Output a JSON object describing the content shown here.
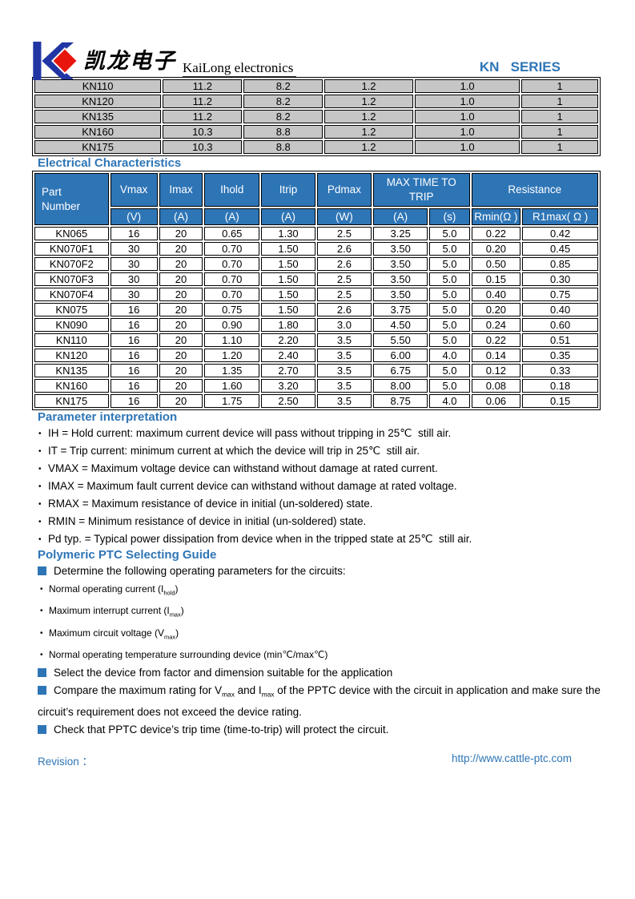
{
  "colors": {
    "accent": "#2E75B6",
    "logo_blue": "#2136A4",
    "logo_red": "#E8150D",
    "table_gray": "#C6C6C6",
    "table_header_blue": "#2E75B6"
  },
  "header": {
    "logo_cn": "凯龙电子",
    "logo_en": "KaiLong electronics",
    "series": "KN   SERIES"
  },
  "dimensions_table": {
    "rows": [
      [
        "KN110",
        "11.2",
        "8.2",
        "1.2",
        "1.0",
        "1"
      ],
      [
        "KN120",
        "11.2",
        "8.2",
        "1.2",
        "1.0",
        "1"
      ],
      [
        "KN135",
        "11.2",
        "8.2",
        "1.2",
        "1.0",
        "1"
      ],
      [
        "KN160",
        "10.3",
        "8.8",
        "1.2",
        "1.0",
        "1"
      ],
      [
        "KN175",
        "10.3",
        "8.8",
        "1.2",
        "1.0",
        "1"
      ]
    ]
  },
  "electrical": {
    "title": "Electrical Characteristics",
    "header": {
      "part": "Part\nNumber",
      "vmax": "Vmax",
      "imax": "Imax",
      "ihold": "Ihold",
      "itrip": "Itrip",
      "pdmax": "Pdmax",
      "max_time": "MAX TIME TO TRIP",
      "resistance": "Resistance",
      "units": [
        "(V)",
        "(A)",
        "(A)",
        "(A)",
        "(W)",
        "(A)",
        "(s)",
        "Rmin(Ω )",
        "R1max( Ω )"
      ]
    },
    "rows": [
      [
        "KN065",
        "16",
        "20",
        "0.65",
        "1.30",
        "2.5",
        "3.25",
        "5.0",
        "0.22",
        "0.42"
      ],
      [
        "KN070F1",
        "30",
        "20",
        "0.70",
        "1.50",
        "2.6",
        "3.50",
        "5.0",
        "0.20",
        "0.45"
      ],
      [
        "KN070F2",
        "30",
        "20",
        "0.70",
        "1.50",
        "2.6",
        "3.50",
        "5.0",
        "0.50",
        "0.85"
      ],
      [
        "KN070F3",
        "30",
        "20",
        "0.70",
        "1.50",
        "2.5",
        "3.50",
        "5.0",
        "0.15",
        "0.30"
      ],
      [
        "KN070F4",
        "30",
        "20",
        "0.70",
        "1.50",
        "2.5",
        "3.50",
        "5.0",
        "0.40",
        "0.75"
      ],
      [
        "KN075",
        "16",
        "20",
        "0.75",
        "1.50",
        "2.6",
        "3.75",
        "5.0",
        "0.20",
        "0.40"
      ],
      [
        "KN090",
        "16",
        "20",
        "0.90",
        "1.80",
        "3.0",
        "4.50",
        "5.0",
        "0.24",
        "0.60"
      ],
      [
        "KN110",
        "16",
        "20",
        "1.10",
        "2.20",
        "3.5",
        "5.50",
        "5.0",
        "0.22",
        "0.51"
      ],
      [
        "KN120",
        "16",
        "20",
        "1.20",
        "2.40",
        "3.5",
        "6.00",
        "4.0",
        "0.14",
        "0.35"
      ],
      [
        "KN135",
        "16",
        "20",
        "1.35",
        "2.70",
        "3.5",
        "6.75",
        "5.0",
        "0.12",
        "0.33"
      ],
      [
        "KN160",
        "16",
        "20",
        "1.60",
        "3.20",
        "3.5",
        "8.00",
        "5.0",
        "0.08",
        "0.18"
      ],
      [
        "KN175",
        "16",
        "20",
        "1.75",
        "2.50",
        "3.5",
        "8.75",
        "4.0",
        "0.06",
        "0.15"
      ]
    ]
  },
  "parameters": {
    "title": "Parameter interpretation",
    "items": [
      "IH = Hold current: maximum current device will pass without tripping in 25℃  still air.",
      "IT = Trip current: minimum current at which the device will trip in 25℃  still air.",
      "VMAX = Maximum voltage device can withstand without damage at rated current.",
      "IMAX = Maximum fault current device can withstand without damage at rated voltage.",
      "RMAX = Maximum resistance of device in initial (un-soldered) state.",
      "RMIN = Minimum resistance of device in initial (un-soldered) state.",
      "Pd typ. = Typical power dissipation from device when in the tripped state at 25℃  still air."
    ]
  },
  "guide": {
    "title": "Polymeric PTC Selecting Guide",
    "items": [
      {
        "bullet": "square",
        "size": "normal",
        "segments": [
          {
            "text": "Determine the following operating parameters for the circuits:"
          }
        ]
      },
      {
        "bullet": "dot",
        "size": "small",
        "segments": [
          {
            "text": "Normal operating current (I"
          },
          {
            "text": "hold",
            "sub": true
          },
          {
            "text": ")"
          }
        ]
      },
      {
        "bullet": "dot",
        "size": "small",
        "segments": [
          {
            "text": "Maximum interrupt current (I"
          },
          {
            "text": "max",
            "sub": true
          },
          {
            "text": ")"
          }
        ]
      },
      {
        "bullet": "dot",
        "size": "small",
        "segments": [
          {
            "text": "Maximum circuit voltage (V"
          },
          {
            "text": "max",
            "sub": true
          },
          {
            "text": ")"
          }
        ]
      },
      {
        "bullet": "dot",
        "size": "small",
        "segments": [
          {
            "text": "Normal operating temperature surrounding device (min℃/max℃)"
          }
        ]
      },
      {
        "bullet": "square",
        "size": "normal",
        "segments": [
          {
            "text": "Select the device from factor and dimension suitable for the application"
          }
        ]
      },
      {
        "bullet": "square",
        "size": "normal",
        "segments": [
          {
            "text": "Compare the maximum rating for V"
          },
          {
            "text": "max",
            "sub": true
          },
          {
            "text": " and I"
          },
          {
            "text": "max",
            "sub": true
          },
          {
            "text": " of the PPTC device with the circuit in application and make sure the circuit’s requirement does not exceed the device rating."
          }
        ]
      },
      {
        "bullet": "square",
        "size": "normal",
        "segments": [
          {
            "text": "Check that PPTC device’s trip time (time-to-trip) will protect the circuit."
          }
        ]
      }
    ]
  },
  "footer": {
    "revision": "Revision ：",
    "url": "http://www.cattle-ptc.com"
  }
}
